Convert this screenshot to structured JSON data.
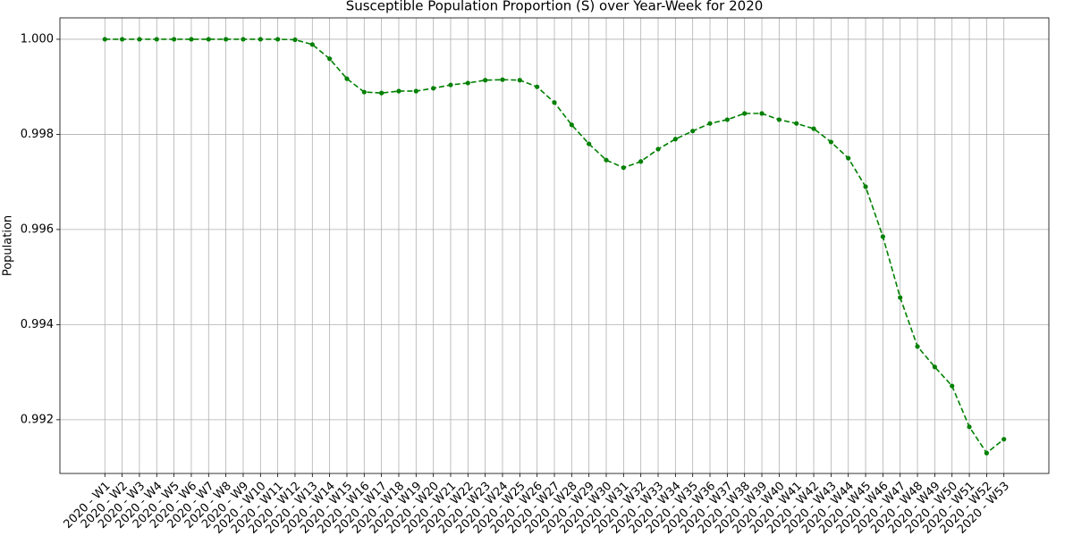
{
  "chart_data": {
    "type": "line",
    "title": "Susceptible Population Proportion (S) over Year-Week for 2020",
    "y_label": "Population",
    "categories": [
      "2020 - W1",
      "2020 - W2",
      "2020 - W3",
      "2020 - W4",
      "2020 - W5",
      "2020 - W6",
      "2020 - W7",
      "2020 - W8",
      "2020 - W9",
      "2020 - W10",
      "2020 - W11",
      "2020 - W12",
      "2020 - W13",
      "2020 - W14",
      "2020 - W15",
      "2020 - W16",
      "2020 - W17",
      "2020 - W18",
      "2020 - W19",
      "2020 - W20",
      "2020 - W21",
      "2020 - W22",
      "2020 - W23",
      "2020 - W24",
      "2020 - W25",
      "2020 - W26",
      "2020 - W27",
      "2020 - W28",
      "2020 - W29",
      "2020 - W30",
      "2020 - W31",
      "2020 - W32",
      "2020 - W33",
      "2020 - W34",
      "2020 - W35",
      "2020 - W36",
      "2020 - W37",
      "2020 - W38",
      "2020 - W39",
      "2020 - W40",
      "2020 - W41",
      "2020 - W42",
      "2020 - W43",
      "2020 - W44",
      "2020 - W45",
      "2020 - W46",
      "2020 - W47",
      "2020 - W48",
      "2020 - W49",
      "2020 - W50",
      "2020 - W51",
      "2020 - W52",
      "2020 - W53"
    ],
    "series": [
      {
        "name": "S",
        "color": "#008000",
        "values": [
          1.0,
          1.0,
          1.0,
          1.0,
          1.0,
          1.0,
          1.0,
          1.0,
          1.0,
          1.0,
          1.0,
          0.99999,
          0.99989,
          0.99959,
          0.99917,
          0.99889,
          0.99887,
          0.99891,
          0.99891,
          0.99897,
          0.99904,
          0.99908,
          0.99914,
          0.99915,
          0.99914,
          0.999,
          0.99867,
          0.9982,
          0.9978,
          0.99746,
          0.9973,
          0.99743,
          0.99769,
          0.9979,
          0.99807,
          0.99823,
          0.99831,
          0.99844,
          0.99844,
          0.99831,
          0.99823,
          0.99812,
          0.99784,
          0.9975,
          0.9969,
          0.99585,
          0.99457,
          0.99354,
          0.99311,
          0.99271,
          0.99185,
          0.9913,
          0.99159
        ]
      }
    ],
    "ylim": [
      0.99087,
      1.00045
    ],
    "yticks": [
      0.992,
      0.994,
      0.996,
      0.998,
      {
        "value": 1,
        "label": "1.000"
      }
    ],
    "grid": true
  }
}
